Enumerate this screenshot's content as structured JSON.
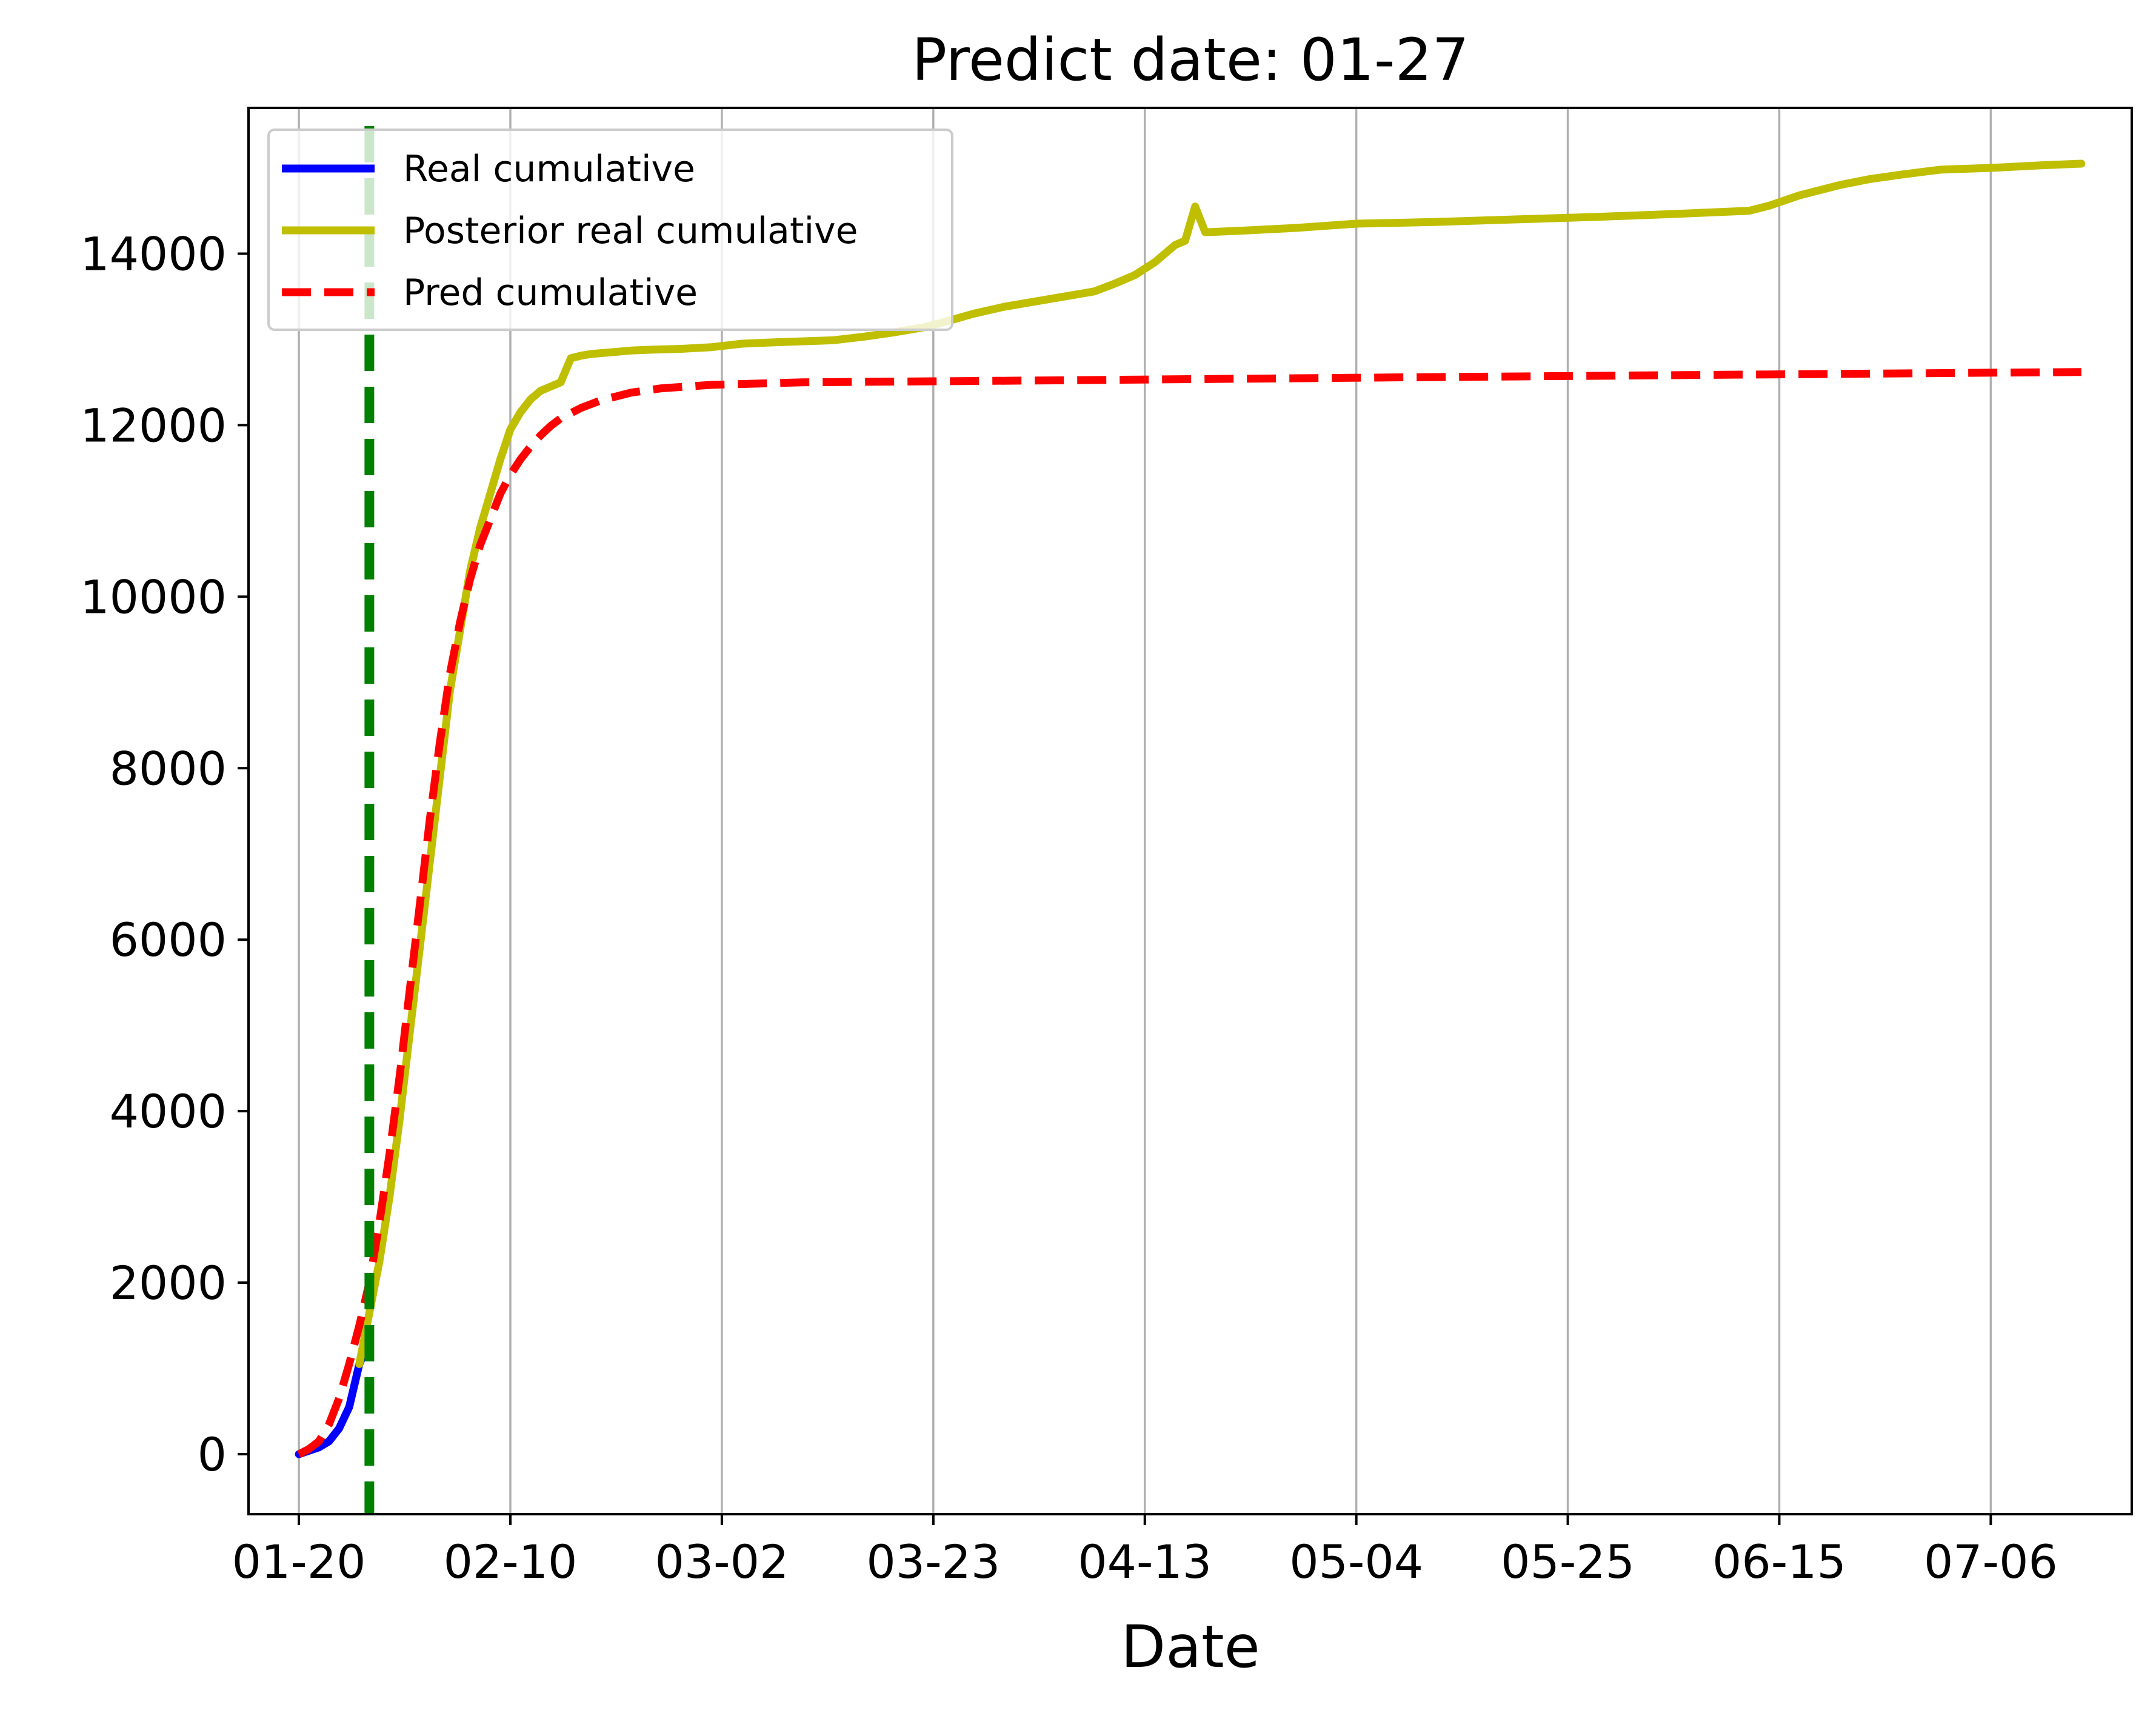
{
  "chart_data": {
    "type": "line",
    "title": "Predict date: 01-27",
    "xlabel": "Date",
    "ylabel": "",
    "x_start": "2020-01-20",
    "x_end": "2020-07-15",
    "xlim": [
      "2020-01-15",
      "2020-07-20"
    ],
    "ylim": [
      -700,
      15700
    ],
    "x_ticks": [
      {
        "label": "01-20",
        "date": "2020-01-20"
      },
      {
        "label": "02-10",
        "date": "2020-02-10"
      },
      {
        "label": "03-02",
        "date": "2020-03-02"
      },
      {
        "label": "03-23",
        "date": "2020-03-23"
      },
      {
        "label": "04-13",
        "date": "2020-04-13"
      },
      {
        "label": "05-04",
        "date": "2020-05-04"
      },
      {
        "label": "05-25",
        "date": "2020-05-25"
      },
      {
        "label": "06-15",
        "date": "2020-06-15"
      },
      {
        "label": "07-06",
        "date": "2020-07-06"
      }
    ],
    "y_ticks": [
      {
        "label": "0",
        "value": 0
      },
      {
        "label": "2000",
        "value": 2000
      },
      {
        "label": "4000",
        "value": 4000
      },
      {
        "label": "6000",
        "value": 6000
      },
      {
        "label": "8000",
        "value": 8000
      },
      {
        "label": "10000",
        "value": 10000
      },
      {
        "label": "12000",
        "value": 12000
      },
      {
        "label": "14000",
        "value": 14000
      }
    ],
    "grid": "x-major",
    "legend_position": "top-left",
    "predict_line": {
      "date": "2020-01-27",
      "color": "#008000",
      "style": "dashed"
    },
    "series": [
      {
        "name": "Real cumulative",
        "color": "#0000ff",
        "style": "solid",
        "points": [
          [
            "2020-01-20",
            0
          ],
          [
            "2020-01-21",
            40
          ],
          [
            "2020-01-22",
            80
          ],
          [
            "2020-01-23",
            150
          ],
          [
            "2020-01-24",
            300
          ],
          [
            "2020-01-25",
            550
          ],
          [
            "2020-01-26",
            1050
          ],
          [
            "2020-01-27",
            1320
          ]
        ]
      },
      {
        "name": "Posterior real cumulative",
        "color": "#bfbf00",
        "style": "solid",
        "points": [
          [
            "2020-01-26",
            1050
          ],
          [
            "2020-01-27",
            1650
          ],
          [
            "2020-01-28",
            2250
          ],
          [
            "2020-01-29",
            3000
          ],
          [
            "2020-01-30",
            3900
          ],
          [
            "2020-01-31",
            4900
          ],
          [
            "2020-02-01",
            5900
          ],
          [
            "2020-02-02",
            6900
          ],
          [
            "2020-02-03",
            7900
          ],
          [
            "2020-02-04",
            8900
          ],
          [
            "2020-02-05",
            9600
          ],
          [
            "2020-02-06",
            10300
          ],
          [
            "2020-02-07",
            10800
          ],
          [
            "2020-02-08",
            11200
          ],
          [
            "2020-02-09",
            11600
          ],
          [
            "2020-02-10",
            11950
          ],
          [
            "2020-02-11",
            12150
          ],
          [
            "2020-02-12",
            12300
          ],
          [
            "2020-02-13",
            12400
          ],
          [
            "2020-02-14",
            12450
          ],
          [
            "2020-02-15",
            12500
          ],
          [
            "2020-02-16",
            12780
          ],
          [
            "2020-02-17",
            12810
          ],
          [
            "2020-02-18",
            12830
          ],
          [
            "2020-02-20",
            12850
          ],
          [
            "2020-02-22",
            12870
          ],
          [
            "2020-02-24",
            12880
          ],
          [
            "2020-02-27",
            12890
          ],
          [
            "2020-03-01",
            12910
          ],
          [
            "2020-03-04",
            12950
          ],
          [
            "2020-03-08",
            12970
          ],
          [
            "2020-03-13",
            12990
          ],
          [
            "2020-03-16",
            13030
          ],
          [
            "2020-03-19",
            13080
          ],
          [
            "2020-03-22",
            13140
          ],
          [
            "2020-03-24",
            13200
          ],
          [
            "2020-03-27",
            13300
          ],
          [
            "2020-03-30",
            13380
          ],
          [
            "2020-04-02",
            13440
          ],
          [
            "2020-04-05",
            13500
          ],
          [
            "2020-04-08",
            13560
          ],
          [
            "2020-04-10",
            13650
          ],
          [
            "2020-04-12",
            13750
          ],
          [
            "2020-04-14",
            13900
          ],
          [
            "2020-04-16",
            14100
          ],
          [
            "2020-04-17",
            14150
          ],
          [
            "2020-04-18",
            14550
          ],
          [
            "2020-04-19",
            14250
          ],
          [
            "2020-04-23",
            14270
          ],
          [
            "2020-04-28",
            14300
          ],
          [
            "2020-05-04",
            14350
          ],
          [
            "2020-05-12",
            14370
          ],
          [
            "2020-05-20",
            14400
          ],
          [
            "2020-05-28",
            14430
          ],
          [
            "2020-06-04",
            14460
          ],
          [
            "2020-06-12",
            14500
          ],
          [
            "2020-06-14",
            14560
          ],
          [
            "2020-06-17",
            14680
          ],
          [
            "2020-06-21",
            14800
          ],
          [
            "2020-06-24",
            14870
          ],
          [
            "2020-06-27",
            14920
          ],
          [
            "2020-07-01",
            14980
          ],
          [
            "2020-07-06",
            15000
          ],
          [
            "2020-07-11",
            15030
          ],
          [
            "2020-07-15",
            15050
          ]
        ]
      },
      {
        "name": "Pred cumulative",
        "color": "#ff0000",
        "style": "dashed",
        "points": [
          [
            "2020-01-20",
            0
          ],
          [
            "2020-01-21",
            60
          ],
          [
            "2020-01-22",
            150
          ],
          [
            "2020-01-23",
            350
          ],
          [
            "2020-01-24",
            650
          ],
          [
            "2020-01-25",
            1050
          ],
          [
            "2020-01-26",
            1500
          ],
          [
            "2020-01-27",
            2000
          ],
          [
            "2020-01-28",
            2700
          ],
          [
            "2020-01-29",
            3500
          ],
          [
            "2020-01-30",
            4400
          ],
          [
            "2020-01-31",
            5400
          ],
          [
            "2020-02-01",
            6400
          ],
          [
            "2020-02-02",
            7400
          ],
          [
            "2020-02-03",
            8300
          ],
          [
            "2020-02-04",
            9100
          ],
          [
            "2020-02-05",
            9700
          ],
          [
            "2020-02-06",
            10200
          ],
          [
            "2020-02-07",
            10600
          ],
          [
            "2020-02-08",
            10900
          ],
          [
            "2020-02-09",
            11200
          ],
          [
            "2020-02-10",
            11420
          ],
          [
            "2020-02-11",
            11600
          ],
          [
            "2020-02-12",
            11750
          ],
          [
            "2020-02-13",
            11880
          ],
          [
            "2020-02-14",
            11990
          ],
          [
            "2020-02-15",
            12080
          ],
          [
            "2020-02-17",
            12200
          ],
          [
            "2020-02-19",
            12290
          ],
          [
            "2020-02-22",
            12380
          ],
          [
            "2020-02-25",
            12430
          ],
          [
            "2020-03-01",
            12470
          ],
          [
            "2020-03-10",
            12500
          ],
          [
            "2020-04-01",
            12520
          ],
          [
            "2020-05-01",
            12550
          ],
          [
            "2020-06-01",
            12580
          ],
          [
            "2020-07-15",
            12620
          ]
        ]
      }
    ]
  }
}
